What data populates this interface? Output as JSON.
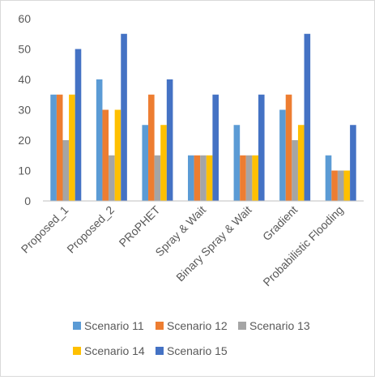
{
  "chart_data": {
    "type": "bar",
    "title": "",
    "xlabel": "",
    "ylabel": "",
    "ylim": [
      0,
      60
    ],
    "yticks": [
      0,
      10,
      20,
      30,
      40,
      50,
      60
    ],
    "grid": false,
    "legend_position": "bottom",
    "categories": [
      "Proposed_1",
      "Proposed_2",
      "PRoPHET",
      "Spray & Wait",
      "Binary Spray & Wait",
      "Gradient",
      "Probabilistic Flooding"
    ],
    "series": [
      {
        "name": "Scenario 11",
        "color": "#5B9BD5",
        "values": [
          35,
          40,
          25,
          15,
          25,
          30,
          15
        ]
      },
      {
        "name": "Scenario 12",
        "color": "#ED7D31",
        "values": [
          35,
          30,
          35,
          15,
          15,
          35,
          10
        ]
      },
      {
        "name": "Scenario 13",
        "color": "#A5A5A5",
        "values": [
          20,
          15,
          15,
          15,
          15,
          20,
          10
        ]
      },
      {
        "name": "Scenario 14",
        "color": "#FFC000",
        "values": [
          35,
          30,
          25,
          15,
          15,
          25,
          10
        ]
      },
      {
        "name": "Scenario 15",
        "color": "#4472C4",
        "values": [
          50,
          55,
          40,
          35,
          35,
          55,
          25
        ]
      }
    ]
  }
}
